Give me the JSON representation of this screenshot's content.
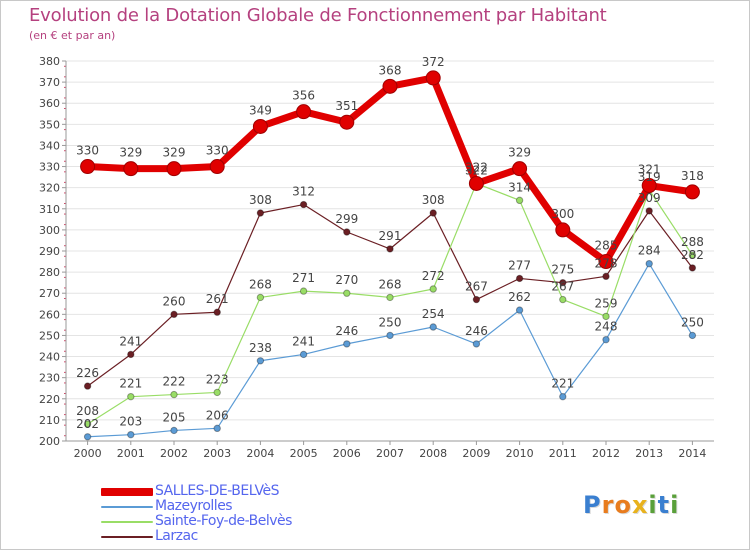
{
  "title": "Evolution de la Dotation Globale de Fonctionnement par Habitant",
  "subtitle": "(en € et par an)",
  "brand": {
    "letters": [
      "P",
      "r",
      "o",
      "x",
      "i",
      "t",
      "i"
    ],
    "colors": [
      "#3a7fd0",
      "#e87c1e",
      "#e87c1e",
      "#e8b21e",
      "#5aa03a",
      "#3a7fd0",
      "#5aa03a"
    ]
  },
  "colors": {
    "axis": "#999999",
    "grid": "#e4e4e4",
    "label": "#444444"
  },
  "chart_data": {
    "type": "line",
    "title": "Evolution de la Dotation Globale de Fonctionnement par Habitant",
    "ylabel": "(en € et par an)",
    "xlabel": "",
    "ylim": [
      200,
      380
    ],
    "ytick_step": 10,
    "grid": true,
    "legend_position": "bottom-left",
    "categories": [
      "2000",
      "2001",
      "2002",
      "2003",
      "2004",
      "2005",
      "2006",
      "2007",
      "2008",
      "2009",
      "2010",
      "2011",
      "2012",
      "2013",
      "2014"
    ],
    "series": [
      {
        "name": "SALLES-DE-BELVèS",
        "color": "#e00000",
        "values": [
          330,
          329,
          329,
          330,
          349,
          356,
          351,
          368,
          372,
          322,
          329,
          300,
          285,
          321,
          318
        ]
      },
      {
        "name": "Mazeyrolles",
        "color": "#5b9bd5",
        "values": [
          202,
          203,
          205,
          206,
          238,
          241,
          246,
          250,
          254,
          246,
          262,
          221,
          248,
          284,
          250
        ]
      },
      {
        "name": "Sainte-Foy-de-Belvès",
        "color": "#99dd66",
        "values": [
          208,
          221,
          222,
          223,
          268,
          271,
          270,
          268,
          272,
          322,
          314,
          267,
          259,
          319,
          288
        ]
      },
      {
        "name": "Larzac",
        "color": "#6b1f24",
        "values": [
          226,
          241,
          260,
          261,
          308,
          312,
          299,
          291,
          308,
          267,
          277,
          275,
          278,
          309,
          282
        ]
      }
    ]
  }
}
